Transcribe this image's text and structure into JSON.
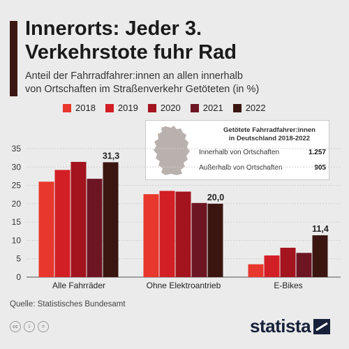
{
  "header": {
    "title_line1": "Innerorts: Jeder 3.",
    "title_line2": "Verkehrstote fuhr Rad",
    "subtitle_line1": "Anteil der Fahrradfahrer:innen an allen innerhalb",
    "subtitle_line2": "von Ortschaften im Straßenverkehr Getöteten (in %)"
  },
  "legend": [
    {
      "label": "2018",
      "color": "#e8372c"
    },
    {
      "label": "2019",
      "color": "#d21f25"
    },
    {
      "label": "2020",
      "color": "#a3141f"
    },
    {
      "label": "2021",
      "color": "#6e1524"
    },
    {
      "label": "2022",
      "color": "#3b1610"
    }
  ],
  "infobox": {
    "title_line1": "Getötete Fahrradfahrer:innen",
    "title_line2": "in Deutschland 2018-2022",
    "rows": [
      {
        "label": "Innerhalb von Ortschaften",
        "value": "1.257"
      },
      {
        "label": "Außerhalb von Ortschaften",
        "value": "905"
      }
    ],
    "map_icon": "germany-map-icon"
  },
  "chart_data": {
    "type": "bar",
    "categories": [
      "Alle Fahrräder",
      "Ohne Elektroantrieb",
      "E-Bikes"
    ],
    "series": [
      {
        "name": "2018",
        "color": "#e8372c",
        "values": [
          26.0,
          22.6,
          3.5
        ]
      },
      {
        "name": "2019",
        "color": "#d21f25",
        "values": [
          29.2,
          23.5,
          5.9
        ]
      },
      {
        "name": "2020",
        "color": "#a3141f",
        "values": [
          31.4,
          23.3,
          8.0
        ]
      },
      {
        "name": "2021",
        "color": "#6e1524",
        "values": [
          26.8,
          20.2,
          6.6
        ]
      },
      {
        "name": "2022",
        "color": "#3b1610",
        "values": [
          31.3,
          20.0,
          11.4
        ]
      }
    ],
    "data_labels": [
      "31,3",
      "20,0",
      "11,4"
    ],
    "yticks": [
      "0",
      "5",
      "10",
      "15",
      "20",
      "25",
      "30",
      "35"
    ],
    "ylim": [
      0,
      35
    ],
    "grid": true,
    "legend_position": "top"
  },
  "footer": {
    "source": "Quelle: Statistisches Bundesamt",
    "logo": "statista",
    "license_icons": [
      "cc",
      "i",
      "="
    ]
  }
}
